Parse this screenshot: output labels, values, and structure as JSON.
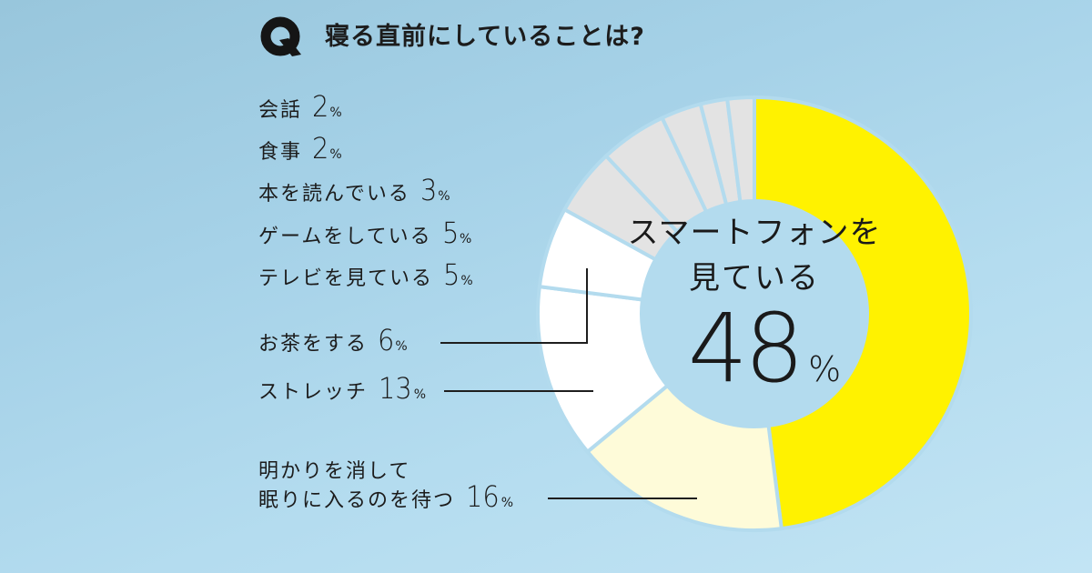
{
  "header": {
    "q_label": "Q",
    "title": "寝る直前にしていることは?"
  },
  "center": {
    "line1": "スマートフォンを",
    "line2": "見ている",
    "value": "48",
    "unit": "%"
  },
  "labels": [
    {
      "text": "会話",
      "value": "2",
      "unit": "%"
    },
    {
      "text": "食事",
      "value": "2",
      "unit": "%"
    },
    {
      "text": "本を読んでいる",
      "value": "3",
      "unit": "%"
    },
    {
      "text": "ゲームをしている",
      "value": "5",
      "unit": "%"
    },
    {
      "text": "テレビを見ている",
      "value": "5",
      "unit": "%"
    },
    {
      "text": "お茶をする",
      "value": "6",
      "unit": "%"
    },
    {
      "text": "ストレッチ",
      "value": "13",
      "unit": "%"
    },
    {
      "text_line1": "明かりを消して",
      "text": "眠りに入るのを待つ",
      "value": "16",
      "unit": "%"
    }
  ],
  "colors": {
    "yellow": "#fff200",
    "cream": "#fefbd9",
    "white": "#ffffff",
    "gray": "#e3e3e3",
    "gap": "#b3dbee",
    "text": "#1c1c1c"
  },
  "chart_data": {
    "type": "pie",
    "subtype": "donut",
    "title": "寝る直前にしていることは?",
    "start": "12 o'clock, clockwise",
    "categories": [
      "スマートフォンを見ている",
      "明かりを消して眠りに入るのを待つ",
      "ストレッチ",
      "お茶をする",
      "テレビを見ている",
      "ゲームをしている",
      "本を読んでいる",
      "食事",
      "会話"
    ],
    "values": [
      48,
      16,
      13,
      6,
      5,
      5,
      3,
      2,
      2
    ],
    "unit": "%",
    "segment_colors": [
      "#fff200",
      "#fefbd9",
      "#ffffff",
      "#ffffff",
      "#e3e3e3",
      "#e3e3e3",
      "#e3e3e3",
      "#e3e3e3",
      "#e3e3e3"
    ],
    "center_label": "スマートフォンを見ている 48%"
  }
}
